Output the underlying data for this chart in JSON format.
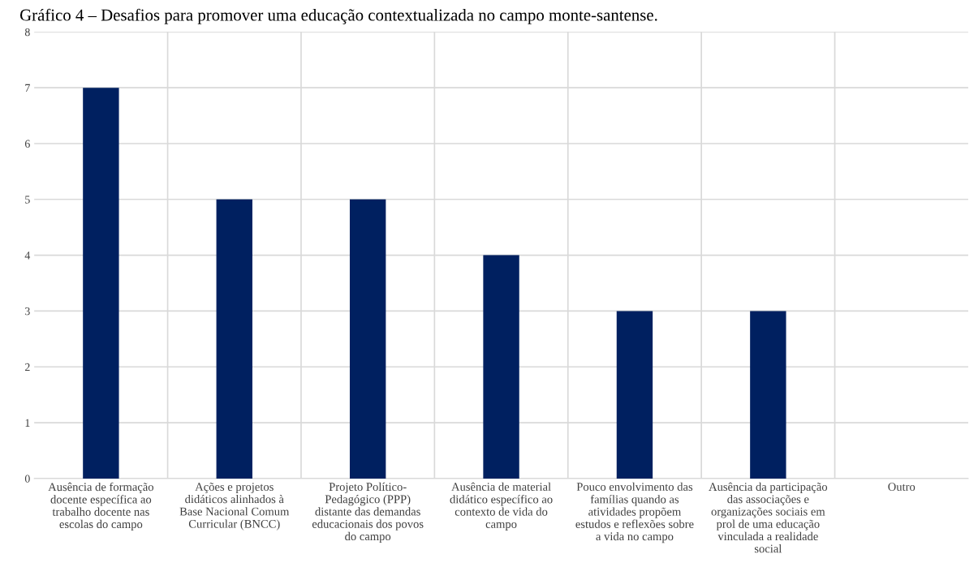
{
  "chart_data": {
    "type": "bar",
    "title": "Gráfico 4 – Desafios para promover uma educação contextualizada no campo monte-santense.",
    "categories": [
      "Ausência de formação\ndocente específica ao\ntrabalho docente nas\nescolas do campo",
      "Ações e projetos\ndidáticos alinhados à\nBase Nacional Comum\nCurricular (BNCC)",
      "Projeto Político-\nPedagógico (PPP)\ndistante das demandas\neducacionais dos povos\ndo campo",
      "Ausência de material\ndidático específico ao\ncontexto de vida do\ncampo",
      "Pouco envolvimento das\nfamílias quando as\natividades propõem\nestudos e reflexões sobre\na vida no campo",
      "Ausência da participação\ndas associações e\norganizações sociais em\nprol de uma educação\nvinculada a realidade\nsocial",
      "Outro"
    ],
    "values": [
      7,
      5,
      5,
      4,
      3,
      3,
      0
    ],
    "color": "#002060",
    "ylim": [
      0,
      8
    ],
    "yticks": [
      0,
      1,
      2,
      3,
      4,
      5,
      6,
      7,
      8
    ],
    "grid": true
  }
}
